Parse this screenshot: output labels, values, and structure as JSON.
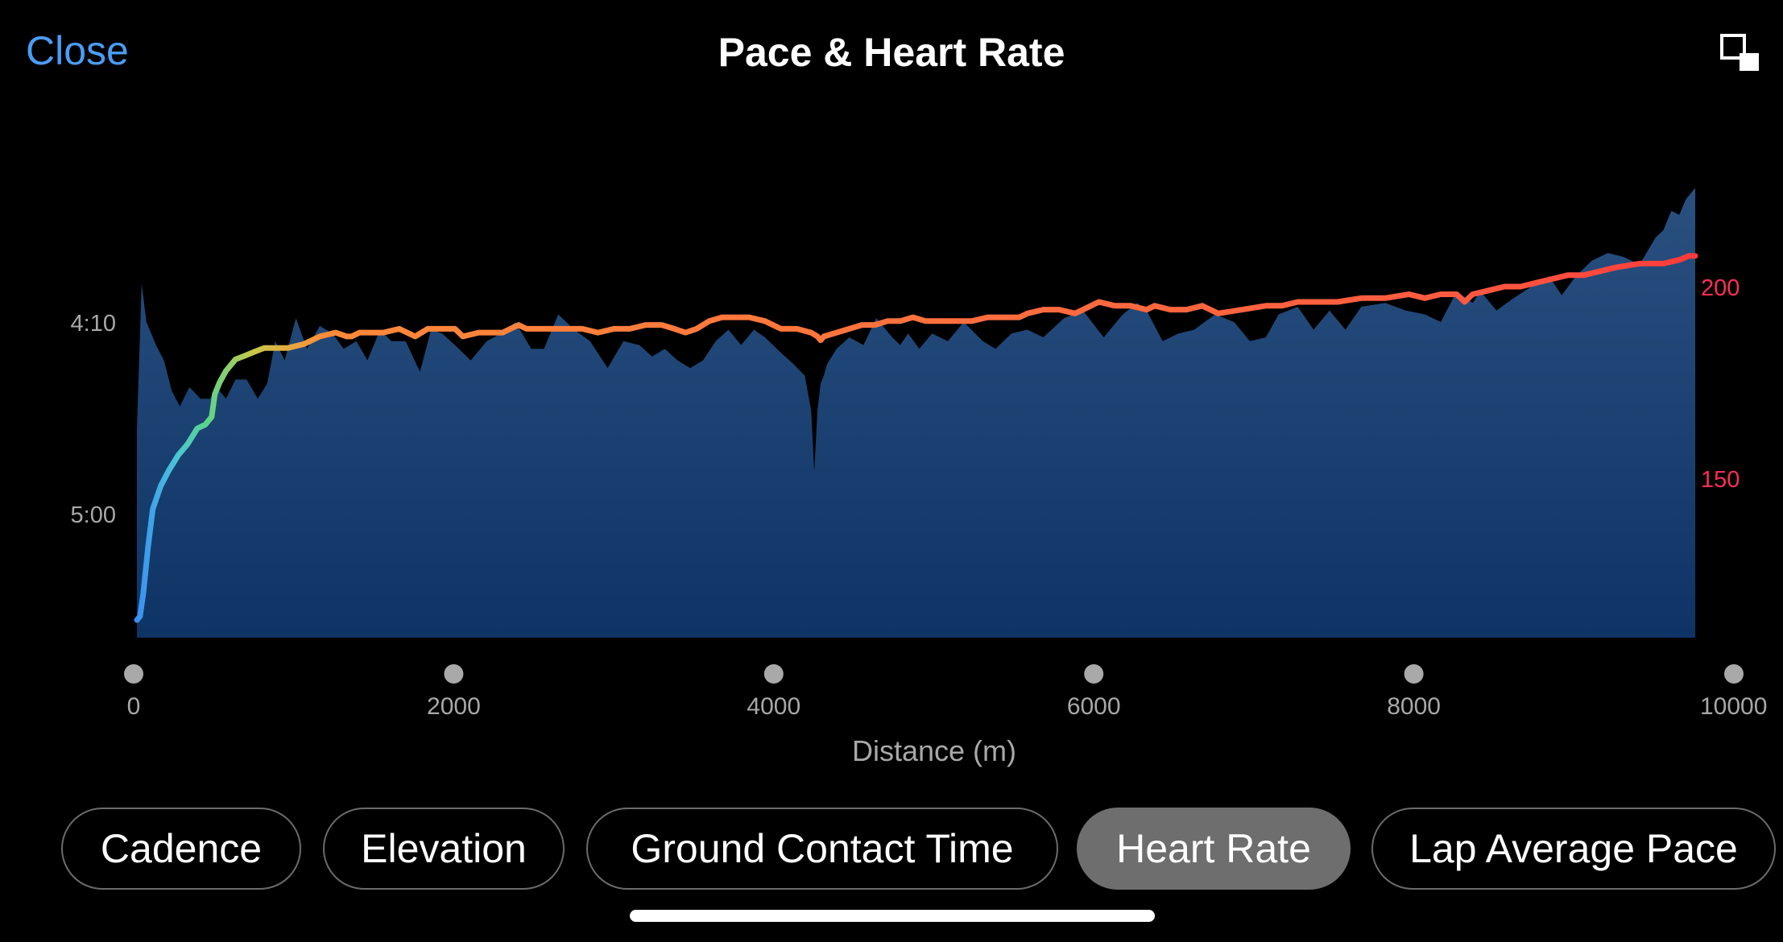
{
  "header": {
    "close_label": "Close",
    "title": "Pace & Heart Rate",
    "expand_icon": "expand-icon"
  },
  "chart_data": {
    "type": "area",
    "title": "Pace & Heart Rate",
    "xlabel": "Distance (m)",
    "x_ticks": [
      "0",
      "2000",
      "4000",
      "6000",
      "8000",
      "10000"
    ],
    "xlim": [
      0,
      9800
    ],
    "left_axis": {
      "label": "",
      "ticks": [
        "4:10",
        "5:00"
      ],
      "reversed": true,
      "ylim": [
        "5:35",
        "3:50"
      ],
      "color": "#a8a8a8"
    },
    "right_axis": {
      "label": "",
      "ticks": [
        "200",
        "150"
      ],
      "ylim": [
        110,
        215
      ],
      "color": "#ff2d55"
    },
    "series": [
      {
        "name": "Pace",
        "style": "area",
        "color": "#1f4a80",
        "axis": "left",
        "x": [
          0,
          30,
          60,
          90,
          120,
          170,
          220,
          270,
          330,
          400,
          460,
          500,
          560,
          620,
          690,
          760,
          820,
          870,
          930,
          1000,
          1070,
          1150,
          1230,
          1300,
          1380,
          1450,
          1530,
          1600,
          1690,
          1780,
          1850,
          1920,
          2000,
          2100,
          2200,
          2290,
          2380,
          2480,
          2560,
          2650,
          2750,
          2850,
          2960,
          3060,
          3160,
          3240,
          3320,
          3400,
          3480,
          3560,
          3640,
          3720,
          3800,
          3880,
          3950,
          4050,
          4130,
          4200,
          4240,
          4260,
          4280,
          4300,
          4320,
          4340,
          4400,
          4480,
          4570,
          4650,
          4750,
          4800,
          4850,
          4920,
          5000,
          5100,
          5200,
          5320,
          5400,
          5500,
          5600,
          5700,
          5830,
          5950,
          6080,
          6200,
          6290,
          6350,
          6450,
          6550,
          6650,
          6780,
          6900,
          7000,
          7100,
          7180,
          7300,
          7400,
          7500,
          7600,
          7700,
          7850,
          7980,
          8100,
          8200,
          8300,
          8400,
          8450,
          8550,
          8650,
          8760,
          8880,
          8960,
          9050,
          9150,
          9250,
          9350,
          9450,
          9550,
          9600,
          9650,
          9700,
          9740,
          9780,
          9800
        ],
        "y": [
          "4:38",
          "4:00",
          "4:10",
          "4:13",
          "4:16",
          "4:20",
          "4:28",
          "4:32",
          "4:27",
          "4:30",
          "4:30",
          "4:27",
          "4:30",
          "4:25",
          "4:25",
          "4:30",
          "4:26",
          "4:15",
          "4:20",
          "4:09",
          "4:17",
          "4:11",
          "4:13",
          "4:17",
          "4:15",
          "4:20",
          "4:12",
          "4:15",
          "4:15",
          "4:23",
          "4:12",
          "4:13",
          "4:16",
          "4:20",
          "4:15",
          "4:13",
          "4:10",
          "4:17",
          "4:17",
          "4:08",
          "4:12",
          "4:15",
          "4:22",
          "4:15",
          "4:16",
          "4:19",
          "4:17",
          "4:20",
          "4:22",
          "4:20",
          "4:15",
          "4:12",
          "4:16",
          "4:12",
          "4:14",
          "4:18",
          "4:21",
          "4:24",
          "4:33",
          "4:49",
          "4:33",
          "4:26",
          "4:24",
          "4:21",
          "4:17",
          "4:14",
          "4:16",
          "4:09",
          "4:14",
          "4:16",
          "4:13",
          "4:17",
          "4:13",
          "4:15",
          "4:10",
          "4:15",
          "4:17",
          "4:13",
          "4:12",
          "4:14",
          "4:09",
          "4:07",
          "4:14",
          "4:08",
          "4:05",
          "4:07",
          "4:15",
          "4:13",
          "4:12",
          "4:08",
          "4:10",
          "4:15",
          "4:14",
          "4:08",
          "4:06",
          "4:12",
          "4:07",
          "4:12",
          "4:06",
          "4:05",
          "4:07",
          "4:08",
          "4:10",
          "4:02",
          "4:05",
          "4:02",
          "4:07",
          "4:04",
          "4:01",
          "3:58",
          "4:03",
          "3:58",
          "3:54",
          "3:52",
          "3:53",
          "3:55",
          "3:48",
          "3:46",
          "3:41",
          "3:42",
          "3:38",
          "3:36",
          "3:35"
        ]
      },
      {
        "name": "Heart Rate",
        "style": "line",
        "axis": "right",
        "color_gradient": [
          "#3a8ff0",
          "#4ac4d8",
          "#5bd48a",
          "#c8c848",
          "#ff8a3a",
          "#ff5a40",
          "#ff3b3b"
        ],
        "x": [
          0,
          20,
          40,
          70,
          100,
          150,
          200,
          260,
          320,
          380,
          430,
          470,
          490,
          520,
          560,
          620,
          680,
          740,
          800,
          880,
          950,
          1050,
          1150,
          1250,
          1320,
          1350,
          1400,
          1450,
          1550,
          1650,
          1750,
          1830,
          1900,
          2000,
          2050,
          2150,
          2300,
          2400,
          2450,
          2550,
          2700,
          2800,
          2900,
          3000,
          3100,
          3200,
          3300,
          3380,
          3450,
          3520,
          3600,
          3680,
          3760,
          3850,
          3950,
          4050,
          4150,
          4240,
          4280,
          4300,
          4320,
          4400,
          4480,
          4560,
          4640,
          4720,
          4800,
          4880,
          4960,
          5050,
          5150,
          5250,
          5350,
          5450,
          5550,
          5600,
          5700,
          5800,
          5900,
          6000,
          6050,
          6150,
          6250,
          6350,
          6400,
          6500,
          6600,
          6700,
          6800,
          6950,
          7100,
          7200,
          7300,
          7400,
          7550,
          7700,
          7850,
          8000,
          8100,
          8200,
          8300,
          8350,
          8400,
          8500,
          8600,
          8700,
          8800,
          8900,
          9000,
          9100,
          9200,
          9300,
          9450,
          9600,
          9700,
          9760,
          9800
        ],
        "y": [
          113,
          114,
          120,
          132,
          142,
          148,
          152,
          156,
          159,
          163,
          164,
          166,
          172,
          175,
          178,
          181,
          182,
          183,
          184,
          184,
          184,
          185,
          187,
          188,
          187,
          187,
          188,
          188,
          188,
          189,
          187,
          189,
          189,
          189,
          187,
          188,
          188,
          190,
          189,
          189,
          189,
          189,
          188,
          189,
          189,
          190,
          190,
          189,
          188,
          189,
          191,
          192,
          192,
          192,
          191,
          189,
          189,
          188,
          187,
          186,
          187,
          188,
          189,
          190,
          190,
          191,
          191,
          192,
          191,
          191,
          191,
          191,
          192,
          192,
          192,
          193,
          194,
          194,
          193,
          195,
          196,
          195,
          195,
          194,
          195,
          194,
          194,
          195,
          193,
          194,
          195,
          195,
          196,
          196,
          196,
          197,
          197,
          198,
          197,
          198,
          198,
          196,
          198,
          199,
          200,
          200,
          201,
          202,
          203,
          203,
          204,
          205,
          206,
          206,
          207,
          208,
          208
        ]
      }
    ],
    "scrubber_points": 6,
    "grid": false,
    "legend": "none"
  },
  "tabs": [
    {
      "label": "Cadence",
      "active": false
    },
    {
      "label": "Elevation",
      "active": false
    },
    {
      "label": "Ground Contact Time",
      "active": false
    },
    {
      "label": "Heart Rate",
      "active": true
    },
    {
      "label": "Lap Average Pace",
      "active": false
    }
  ]
}
